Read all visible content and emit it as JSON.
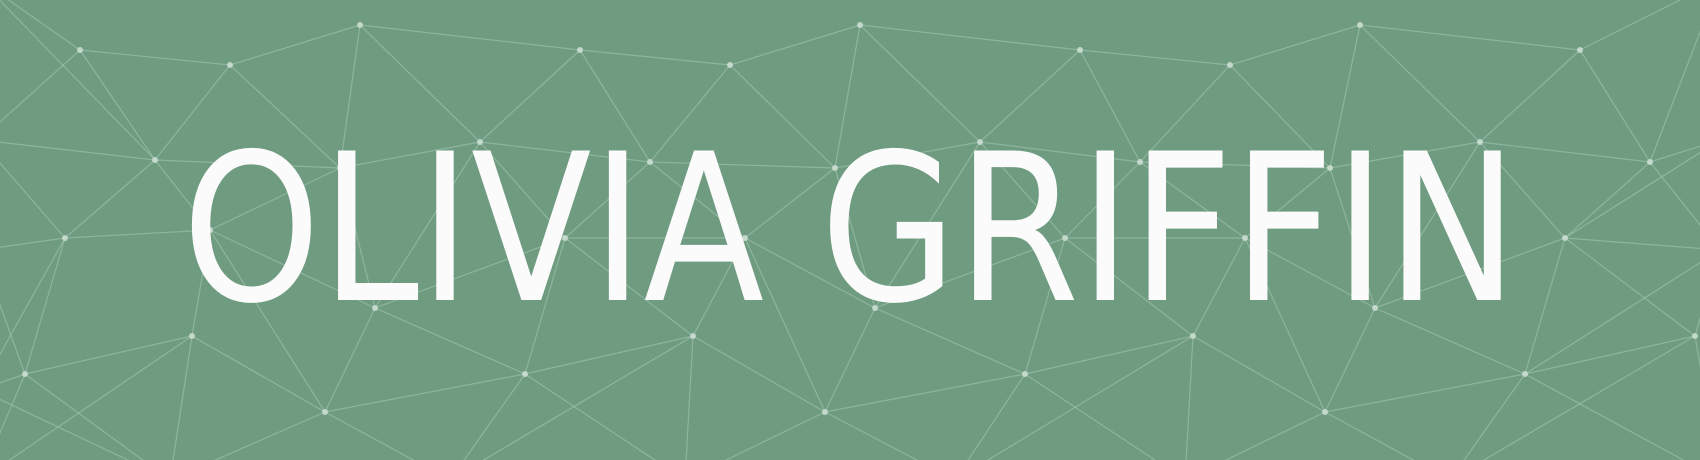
{
  "banner": {
    "name": "OLIVIA GRIFFIN",
    "colors": {
      "background": "#6f9c81",
      "text": "#fbfbfb",
      "mesh_line": "#a9c8b5",
      "mesh_node": "#d2e3d8"
    }
  }
}
